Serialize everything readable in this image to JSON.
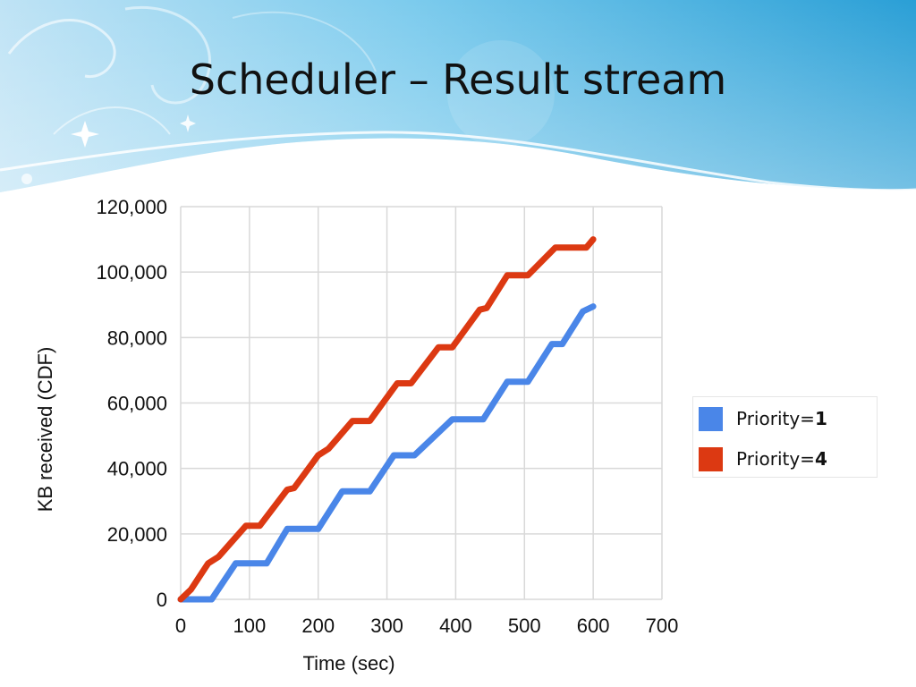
{
  "slide": {
    "title": "Scheduler – Result stream"
  },
  "colors": {
    "banner_light": "#cfeaf7",
    "banner_dark": "#2a9fd6",
    "series_1": "#4a86e8",
    "series_2": "#dc3912",
    "grid": "#d9d9d9"
  },
  "chart_data": {
    "type": "line",
    "xlabel": "Time (sec)",
    "ylabel": "KB received (CDF)",
    "xlim": [
      0,
      700
    ],
    "ylim": [
      0,
      120000
    ],
    "xticks": [
      0,
      100,
      200,
      300,
      400,
      500,
      600,
      700
    ],
    "yticks": [
      0,
      20000,
      40000,
      60000,
      80000,
      100000,
      120000
    ],
    "xtick_labels": [
      "0",
      "100",
      "200",
      "300",
      "400",
      "500",
      "600",
      "700"
    ],
    "ytick_labels": [
      "0",
      "20,000",
      "40,000",
      "60,000",
      "80,000",
      "100,000",
      "120,000"
    ],
    "grid": true,
    "legend_position": "right",
    "series": [
      {
        "name_prefix": "Priority=",
        "name_value": "1",
        "color": "#4a86e8",
        "x": [
          0,
          45,
          80,
          125,
          155,
          200,
          235,
          275,
          310,
          340,
          395,
          440,
          475,
          505,
          540,
          555,
          585,
          600
        ],
        "y": [
          0,
          0,
          11000,
          11000,
          21500,
          21500,
          33000,
          33000,
          44000,
          44000,
          55000,
          55000,
          66500,
          66500,
          78000,
          78000,
          88000,
          89500
        ]
      },
      {
        "name_prefix": "Priority=",
        "name_value": "4",
        "color": "#dc3912",
        "x": [
          0,
          15,
          40,
          55,
          95,
          115,
          155,
          165,
          200,
          215,
          250,
          275,
          315,
          335,
          375,
          395,
          435,
          445,
          475,
          505,
          545,
          590,
          600
        ],
        "y": [
          0,
          3000,
          11000,
          13000,
          22500,
          22500,
          33500,
          34000,
          44000,
          46000,
          54500,
          54500,
          66000,
          66000,
          77000,
          77000,
          88500,
          89000,
          99000,
          99000,
          107500,
          107500,
          110000
        ]
      }
    ]
  }
}
